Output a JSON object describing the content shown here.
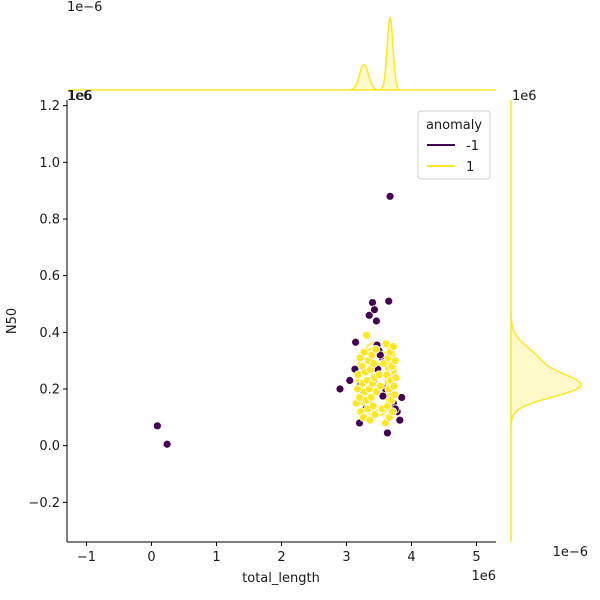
{
  "chart_data": {
    "type": "scatter",
    "title": "",
    "xlabel": "total_length",
    "ylabel": "N50",
    "xlim": [
      -1.3,
      5.3
    ],
    "ylim": [
      -0.34,
      1.22
    ],
    "x_ticks": [
      -1,
      0,
      1,
      2,
      3,
      4,
      5
    ],
    "x_tick_labels": [
      "−1",
      "0",
      "1",
      "2",
      "3",
      "4",
      "5"
    ],
    "y_ticks": [
      -0.2,
      0.0,
      0.2,
      0.4,
      0.6,
      0.8,
      1.0,
      1.2
    ],
    "y_tick_labels": [
      "−0.2",
      "0.0",
      "0.2",
      "0.4",
      "0.6",
      "0.8",
      "1.0",
      "1.2"
    ],
    "x_offset_label": "1e6",
    "y_offset_label": "1e6",
    "top_marginal_offset": "1e−6",
    "top_marginal_x_offset": "1e6",
    "right_marginal_offset": "1e−6",
    "right_marginal_y_offset": "1e6",
    "legend": {
      "title": "anomaly",
      "placement": "top-right",
      "entries": [
        {
          "label": "-1",
          "color": "#440154"
        },
        {
          "label": "1",
          "color": "#fde725"
        }
      ]
    },
    "series": [
      {
        "name": "-1",
        "color": "#440154",
        "points": [
          [
            0.09,
            0.07
          ],
          [
            0.24,
            0.005
          ],
          [
            2.9,
            0.2
          ],
          [
            3.05,
            0.23
          ],
          [
            3.13,
            0.27
          ],
          [
            3.14,
            0.365
          ],
          [
            3.2,
            0.08
          ],
          [
            3.25,
            0.195
          ],
          [
            3.35,
            0.46
          ],
          [
            3.4,
            0.505
          ],
          [
            3.43,
            0.48
          ],
          [
            3.46,
            0.44
          ],
          [
            3.47,
            0.355
          ],
          [
            3.5,
            0.335
          ],
          [
            3.55,
            0.31
          ],
          [
            3.6,
            0.2
          ],
          [
            3.63,
            0.045
          ],
          [
            3.65,
            0.51
          ],
          [
            3.67,
            0.88
          ],
          [
            3.72,
            0.15
          ],
          [
            3.78,
            0.12
          ],
          [
            3.82,
            0.09
          ],
          [
            3.85,
            0.17
          ],
          [
            3.3,
            0.13
          ],
          [
            3.48,
            0.27
          ],
          [
            3.56,
            0.175
          ],
          [
            3.42,
            0.23
          ],
          [
            3.22,
            0.215
          ],
          [
            3.75,
            0.13
          ],
          [
            3.52,
            0.32
          ]
        ]
      },
      {
        "name": "1",
        "color": "#fde725",
        "points": [
          [
            3.15,
            0.15
          ],
          [
            3.17,
            0.2
          ],
          [
            3.18,
            0.25
          ],
          [
            3.2,
            0.17
          ],
          [
            3.21,
            0.31
          ],
          [
            3.22,
            0.12
          ],
          [
            3.24,
            0.28
          ],
          [
            3.25,
            0.22
          ],
          [
            3.26,
            0.1
          ],
          [
            3.27,
            0.33
          ],
          [
            3.28,
            0.19
          ],
          [
            3.29,
            0.26
          ],
          [
            3.3,
            0.16
          ],
          [
            3.31,
            0.39
          ],
          [
            3.32,
            0.23
          ],
          [
            3.33,
            0.13
          ],
          [
            3.34,
            0.3
          ],
          [
            3.35,
            0.2
          ],
          [
            3.36,
            0.09
          ],
          [
            3.37,
            0.27
          ],
          [
            3.38,
            0.17
          ],
          [
            3.39,
            0.32
          ],
          [
            3.4,
            0.22
          ],
          [
            3.41,
            0.14
          ],
          [
            3.42,
            0.29
          ],
          [
            3.43,
            0.24
          ],
          [
            3.44,
            0.11
          ],
          [
            3.45,
            0.34
          ],
          [
            3.46,
            0.19
          ],
          [
            3.5,
            0.25
          ],
          [
            3.52,
            0.21
          ],
          [
            3.55,
            0.13
          ],
          [
            3.57,
            0.29
          ],
          [
            3.6,
            0.08
          ],
          [
            3.61,
            0.36
          ],
          [
            3.62,
            0.25
          ],
          [
            3.63,
            0.14
          ],
          [
            3.64,
            0.31
          ],
          [
            3.65,
            0.2
          ],
          [
            3.66,
            0.1
          ],
          [
            3.67,
            0.33
          ],
          [
            3.68,
            0.23
          ],
          [
            3.69,
            0.16
          ],
          [
            3.7,
            0.28
          ],
          [
            3.71,
            0.12
          ],
          [
            3.72,
            0.35
          ],
          [
            3.73,
            0.21
          ],
          [
            3.74,
            0.18
          ],
          [
            3.75,
            0.3
          ],
          [
            3.76,
            0.24
          ]
        ]
      }
    ],
    "marginal_x": {
      "series": "1",
      "color": "#fde725",
      "peaks": [
        {
          "center": 3.27,
          "width": 0.07,
          "height": 0.35
        },
        {
          "center": 3.67,
          "width": 0.045,
          "height": 1.0
        }
      ]
    },
    "marginal_y": {
      "series": "1",
      "color": "#fde725",
      "peaks": [
        {
          "center": 0.21,
          "width": 0.04,
          "height": 1.0
        },
        {
          "center": 0.3,
          "width": 0.05,
          "height": 0.4
        }
      ]
    }
  }
}
